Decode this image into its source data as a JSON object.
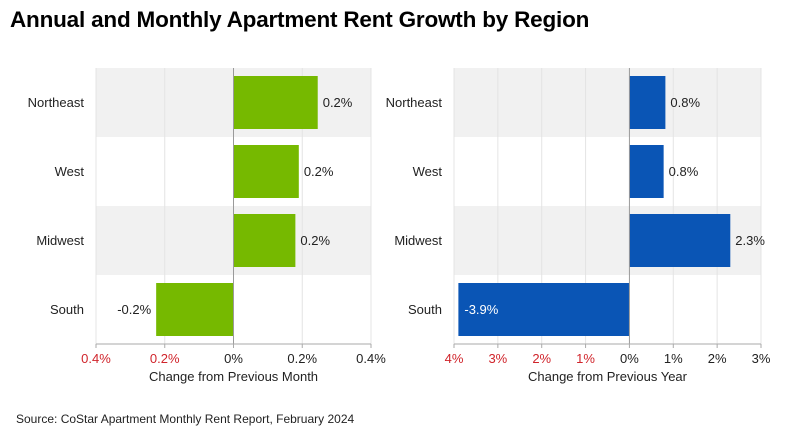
{
  "title": "Annual and Monthly Apartment Rent Growth by Region",
  "source": "Source: CoStar Apartment Monthly Rent Report, February 2024",
  "colors": {
    "monthly_bar": "#76b900",
    "annual_bar": "#0a55b5",
    "band": "#f1f1f1",
    "negative_tick": "#d0242b",
    "positive_tick": "#222222"
  },
  "chart_data": [
    {
      "type": "bar",
      "orientation": "horizontal",
      "categories": [
        "Northeast",
        "West",
        "Midwest",
        "South"
      ],
      "values": [
        0.245,
        0.19,
        0.18,
        -0.225
      ],
      "data_labels": [
        "0.2%",
        "0.2%",
        "0.2%",
        "-0.2%"
      ],
      "xlabel": "Change from Previous Month",
      "xlim": [
        -0.4,
        0.4
      ],
      "ticks": [
        -0.4,
        -0.2,
        0,
        0.2,
        0.4
      ],
      "tick_labels": [
        "0.4%",
        "0.2%",
        "0%",
        "0.2%",
        "0.4%"
      ],
      "grid": true
    },
    {
      "type": "bar",
      "orientation": "horizontal",
      "categories": [
        "Northeast",
        "West",
        "Midwest",
        "South"
      ],
      "values": [
        0.82,
        0.78,
        2.3,
        -3.9
      ],
      "data_labels": [
        "0.8%",
        "0.8%",
        "2.3%",
        "-3.9%"
      ],
      "xlabel": "Change from Previous Year",
      "xlim": [
        -4,
        3
      ],
      "ticks": [
        -4,
        -3,
        -2,
        -1,
        0,
        1,
        2,
        3
      ],
      "tick_labels": [
        "4%",
        "3%",
        "2%",
        "1%",
        "0%",
        "1%",
        "2%",
        "3%"
      ],
      "grid": true
    }
  ]
}
